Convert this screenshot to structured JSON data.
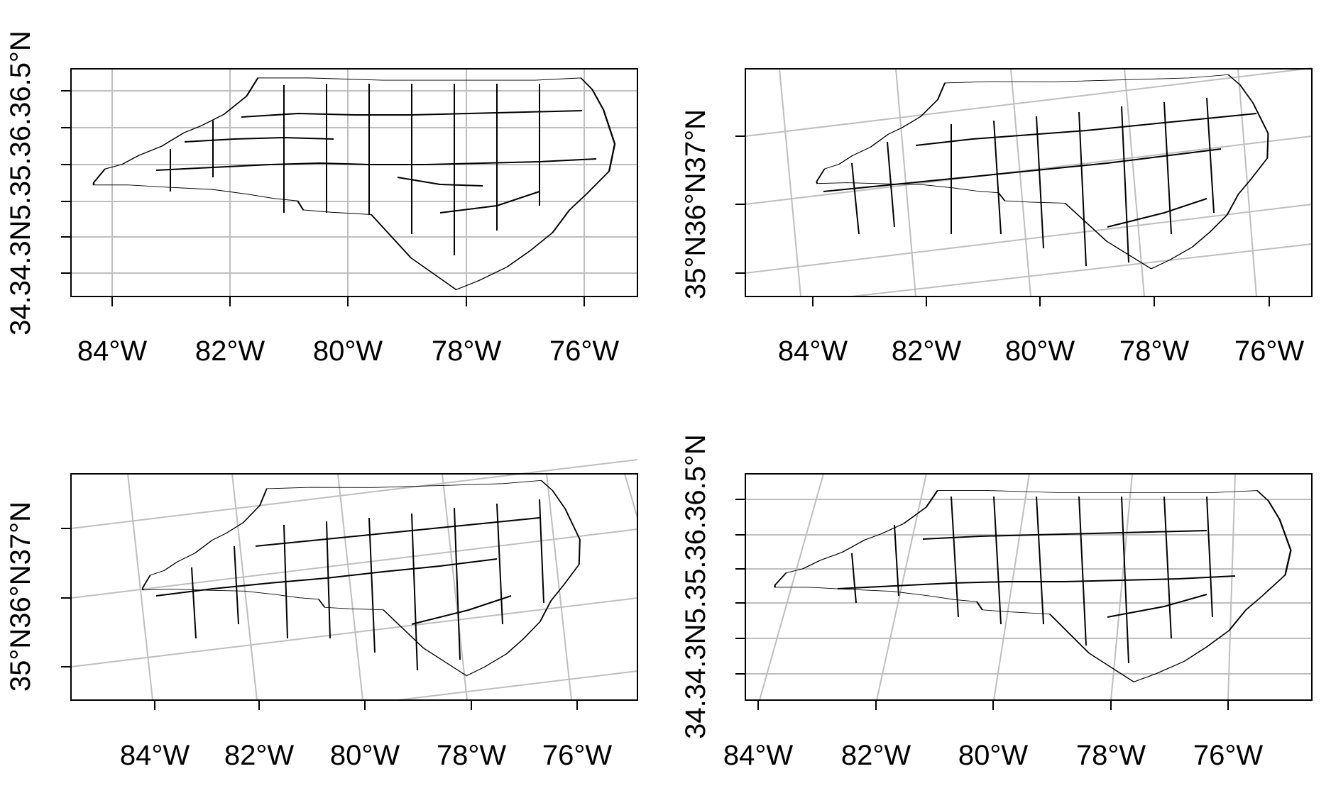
{
  "map": {
    "colors": {
      "graticule": "#bebebe",
      "outline": "#000000",
      "frame": "#000000",
      "background": "#ffffff"
    },
    "panels": [
      {
        "id": "panel-1",
        "projection": "plate-carree",
        "x_labels": [
          "84°W",
          "82°W",
          "80°W",
          "78°W",
          "76°W"
        ],
        "y_label_text": "34.34.3N5.35.36.36.5°N"
      },
      {
        "id": "panel-2",
        "projection": "rotated",
        "x_labels": [
          "84°W",
          "82°W",
          "80°W",
          "78°W",
          "76°W"
        ],
        "y_label_text": "35°N36°N37°N"
      },
      {
        "id": "panel-3",
        "projection": "rotated",
        "x_labels": [
          "84°W",
          "82°W",
          "80°W",
          "78°W",
          "76°W"
        ],
        "y_label_text": "35°N36°N37°N"
      },
      {
        "id": "panel-4",
        "projection": "mixed",
        "x_labels": [
          "84°W",
          "82°W",
          "80°W",
          "78°W",
          "76°W"
        ],
        "y_label_text": "34.34.3N5.35.36.36.5°N"
      }
    ]
  }
}
